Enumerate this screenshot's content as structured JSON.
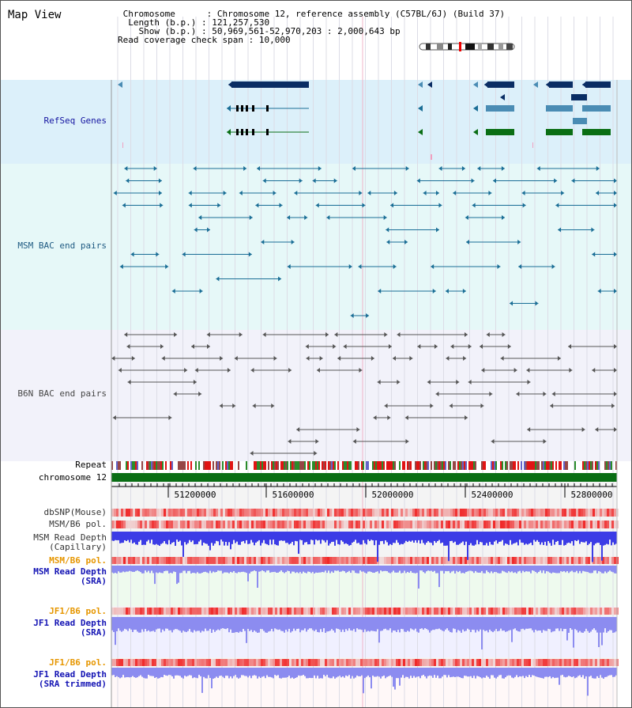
{
  "title": "Map View",
  "info": {
    "chromosome_key": "Chromosome",
    "chromosome_val": "Chromosome 12, reference assembly (C57BL/6J) (Build 37)",
    "length_key": "Length (b.p.)",
    "length_val": "121,257,530",
    "show_key": "Show (b.p.)",
    "show_val": "50,969,561-52,970,203 : 2,000,643 bp",
    "coverage_key": "Read coverage check span",
    "coverage_val": "10,000"
  },
  "tracks": {
    "refseq": "RefSeq Genes",
    "msm_bac": "MSM BAC end pairs",
    "b6n_bac": "B6N BAC end pairs",
    "repeat": "Repeat",
    "chromosome": "chromosome 12",
    "dbsnp": "dbSNP(Mouse)",
    "msm_b6_pol_1": "MSM/B6 pol.",
    "msm_depth_cap_1": "MSM Read Depth",
    "msm_depth_cap_2": "(Capillary)",
    "msm_b6_pol_2": "MSM/B6 pol.",
    "msm_depth_sra_1": "MSM Read Depth",
    "msm_depth_sra_2": "(SRA)",
    "jf1_b6_pol_1": "JF1/B6 pol.",
    "jf1_depth_sra_1": "JF1 Read Depth",
    "jf1_depth_sra_2": "(SRA)",
    "jf1_b6_pol_2": "JF1/B6 pol.",
    "jf1_depth_trim_1": "JF1 Read Depth",
    "jf1_depth_trim_2": "(SRA trimmed)"
  },
  "axis": {
    "ticks": [
      "51200000",
      "51600000",
      "52000000",
      "52400000",
      "52800000"
    ]
  },
  "colors": {
    "refseq_bg": "#dcf0fa",
    "msm_bg": "#e6f8f8",
    "b6n_bg": "#f2f2fa",
    "gene_dark": "#0a2d64",
    "gene_mid": "#4a8cb4",
    "gene_green": "#0a6e14",
    "msm_pair": "#1a6e96",
    "b6n_pair": "#555555",
    "chrom_green": "#0a6e14",
    "depth_blue": "#3c3ce6",
    "depth_light": "#8c8cf0"
  }
}
